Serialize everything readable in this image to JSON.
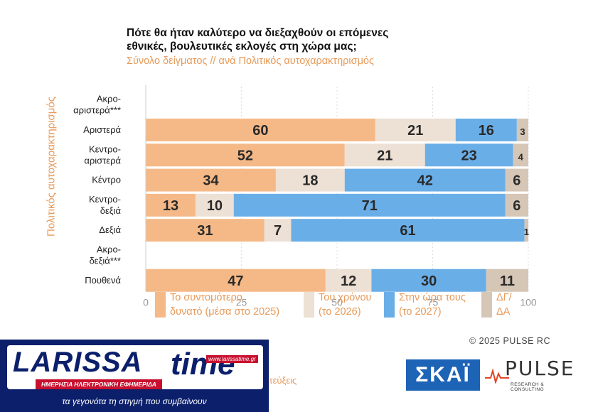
{
  "header": {
    "title_line1": "Πότε θα ήταν καλύτερο να διεξαχθούν οι επόμενες",
    "title_line2": "εθνικές, βουλευτικές εκλογές στη χώρα μας;",
    "subtitle": "Σύνολο δείγματος // ανά Πολιτικός αυτοχαρακτηρισμός",
    "y_axis_title": "Πολιτικός αυτοχαρακτηρισμός"
  },
  "chart_data": {
    "type": "bar",
    "orientation": "horizontal",
    "stacked": true,
    "categories": [
      "Ακρο-\nαριστερά***",
      "Αριστερά",
      "Κεντρο-\nαριστερά",
      "Κέντρο",
      "Κεντρο-\nδεξιά",
      "Δεξιά",
      "Ακρο-\nδεξιά***",
      "Πουθενά"
    ],
    "series": [
      {
        "name": "Το συντομότερο δυνατό (μέσα στο 2025)",
        "color": "#f5b987",
        "values": [
          null,
          60,
          52,
          34,
          13,
          31,
          null,
          47
        ]
      },
      {
        "name": "Του χρόνου (το 2026)",
        "color": "#ede0d4",
        "values": [
          null,
          21,
          21,
          18,
          10,
          7,
          null,
          12
        ]
      },
      {
        "name": "Στην ώρα τους (το 2027)",
        "color": "#6aaee8",
        "values": [
          null,
          16,
          23,
          42,
          71,
          61,
          null,
          30
        ]
      },
      {
        "name": "ΔΓ/ΔΑ",
        "color": "#d6c6b6",
        "values": [
          null,
          3,
          4,
          6,
          6,
          1,
          null,
          11
        ]
      }
    ],
    "xlim": [
      0,
      100
    ],
    "xticks": [
      0,
      25,
      50,
      75,
      100
    ],
    "xtick_labels": [
      "0",
      "25",
      "50",
      "75",
      "100"
    ],
    "grid": true,
    "legend_position": "bottom"
  },
  "legend": [
    {
      "label": "Το συντομότερο\nδυνατό (μέσα στο 2025)",
      "color": "#f5b987"
    },
    {
      "label": "Του χρόνου\n(το 2026)",
      "color": "#ede0d4"
    },
    {
      "label": "Στην ώρα τους\n(το 2027)",
      "color": "#6aaee8"
    },
    {
      "label": "ΔΓ/\nΔΑ",
      "color": "#d6c6b6"
    }
  ],
  "footer": {
    "copyright": "©  2025  PULSE RC",
    "skai_logo": "ΣΚΑΪ",
    "pulse_logo": "PULSE",
    "pulse_tagline": "RESEARCH & CONSULTING",
    "partial_text": "ντεύξεις"
  },
  "larissa": {
    "brand": "LARISSA",
    "time": "time",
    "url": "www.larissatime.gr",
    "tagline": "ΗΜΕΡΗΣΙΑ ΗΛΕΚΤΡΟΝΙΚΗ ΕΦΗΜΕΡΙΔΑ",
    "slogan": "τα γεγονότα τη στιγμή που συμβαίνουν"
  }
}
